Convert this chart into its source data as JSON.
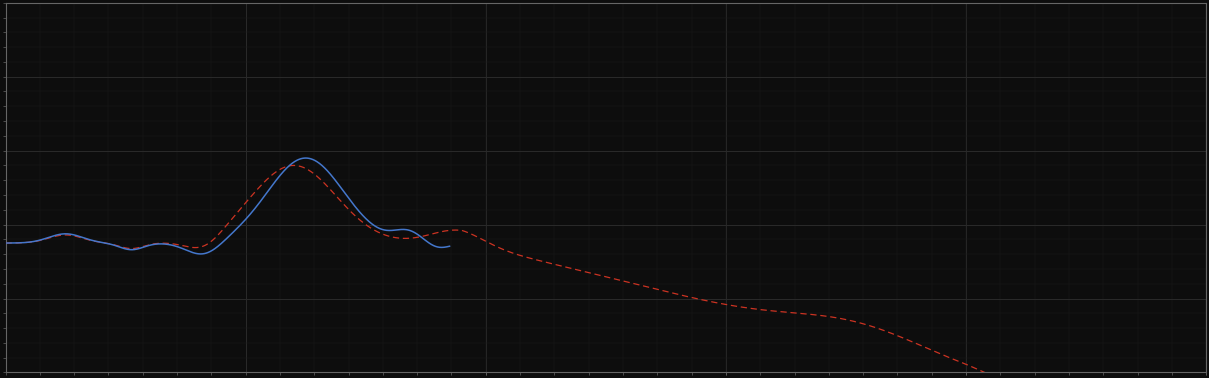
{
  "background_color": "#0d0d0d",
  "axes_bg_color": "#0d0d0d",
  "grid_major_color": "#2a2a2a",
  "grid_minor_color": "#1c1c1c",
  "line_blue_color": "#4477cc",
  "line_red_color": "#cc3322",
  "xlim": [
    0,
    1000
  ],
  "ylim": [
    0,
    10
  ],
  "x_major_interval": 200,
  "x_minor_interval": 28.57,
  "y_major_interval": 2.0,
  "y_minor_interval": 0.4,
  "figsize": [
    12.09,
    3.78
  ],
  "dpi": 100,
  "spine_color": "#666666",
  "tick_color": "#666666",
  "blue_end_x": 370
}
